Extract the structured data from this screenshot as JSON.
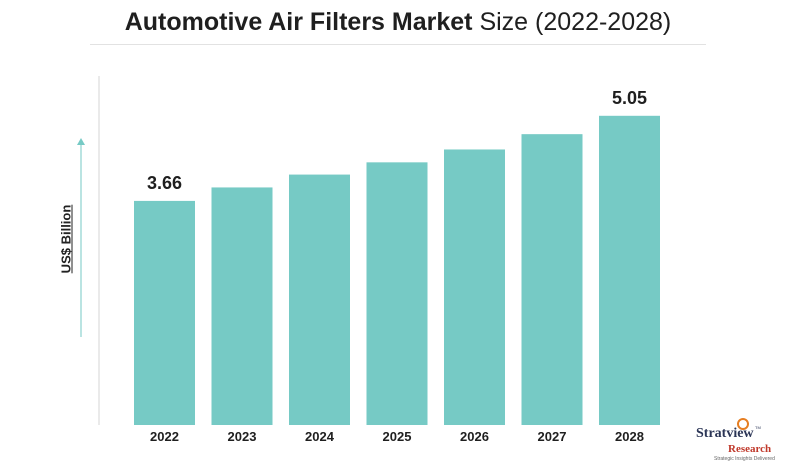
{
  "chart_data": {
    "type": "bar",
    "title": "Automotive Air Filters Market",
    "subtitle": "Size (2022-2028)",
    "ylabel": "US$ Billion",
    "xlabel": "",
    "categories": [
      "2022",
      "2023",
      "2024",
      "2025",
      "2026",
      "2027",
      "2028"
    ],
    "values": [
      3.66,
      3.88,
      4.09,
      4.29,
      4.5,
      4.75,
      5.05
    ],
    "data_labels": [
      "3.66",
      "",
      "",
      "",
      "",
      "",
      "5.05"
    ],
    "ylim": [
      0,
      5.7
    ],
    "grid": false,
    "bar_color": "#76cac5"
  },
  "logo": {
    "brand": "Stratview",
    "brand2": "Research",
    "tagline": "Strategic Insights Delivered",
    "tm": "TM"
  }
}
